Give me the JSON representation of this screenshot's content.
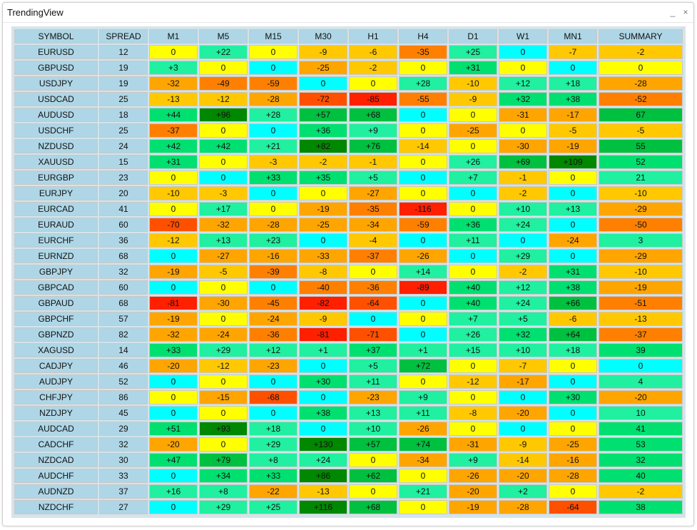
{
  "window": {
    "title": "TrendingView",
    "minimize_label": "_",
    "close_label": "×"
  },
  "table": {
    "headers": [
      "SYMBOL",
      "SPREAD",
      "M1",
      "M5",
      "M15",
      "M30",
      "H1",
      "H4",
      "D1",
      "W1",
      "MN1",
      "SUMMARY"
    ],
    "rows": [
      {
        "symbol": "EURUSD",
        "spread": "12",
        "values": [
          "0",
          "+22",
          "0",
          "-9",
          "-6",
          "-35",
          "+25",
          "0",
          "-7",
          "-2"
        ]
      },
      {
        "symbol": "GBPUSD",
        "spread": "19",
        "values": [
          "+3",
          "0",
          "0",
          "-25",
          "-2",
          "0",
          "+31",
          "0",
          "0",
          "0"
        ]
      },
      {
        "symbol": "USDJPY",
        "spread": "19",
        "values": [
          "-32",
          "-49",
          "-59",
          "0",
          "0",
          "+28",
          "-10",
          "+12",
          "+18",
          "-28"
        ]
      },
      {
        "symbol": "USDCAD",
        "spread": "25",
        "values": [
          "-13",
          "-12",
          "-28",
          "-72",
          "-85",
          "-55",
          "-9",
          "+32",
          "+38",
          "-52"
        ]
      },
      {
        "symbol": "AUDUSD",
        "spread": "18",
        "values": [
          "+44",
          "+96",
          "+28",
          "+57",
          "+68",
          "0",
          "0",
          "-31",
          "-17",
          "67"
        ]
      },
      {
        "symbol": "USDCHF",
        "spread": "25",
        "values": [
          "-37",
          "0",
          "0",
          "+36",
          "+9",
          "0",
          "-25",
          "0",
          "-5",
          "-5"
        ]
      },
      {
        "symbol": "NZDUSD",
        "spread": "24",
        "values": [
          "+42",
          "+42",
          "+21",
          "+82",
          "+76",
          "-14",
          "0",
          "-30",
          "-19",
          "55"
        ]
      },
      {
        "symbol": "XAUUSD",
        "spread": "15",
        "values": [
          "+31",
          "0",
          "-3",
          "-2",
          "-1",
          "0",
          "+26",
          "+69",
          "+109",
          "52"
        ]
      },
      {
        "symbol": "EURGBP",
        "spread": "23",
        "values": [
          "0",
          "0",
          "+33",
          "+35",
          "+5",
          "0",
          "+7",
          "-1",
          "0",
          "21"
        ]
      },
      {
        "symbol": "EURJPY",
        "spread": "20",
        "values": [
          "-10",
          "-3",
          "0",
          "0",
          "-27",
          "0",
          "0",
          "-2",
          "0",
          "-10"
        ]
      },
      {
        "symbol": "EURCAD",
        "spread": "41",
        "values": [
          "0",
          "+17",
          "0",
          "-19",
          "-35",
          "-116",
          "0",
          "+10",
          "+13",
          "-29"
        ]
      },
      {
        "symbol": "EURAUD",
        "spread": "60",
        "values": [
          "-70",
          "-32",
          "-28",
          "-25",
          "-34",
          "-59",
          "+36",
          "+24",
          "0",
          "-50"
        ]
      },
      {
        "symbol": "EURCHF",
        "spread": "36",
        "values": [
          "-12",
          "+13",
          "+23",
          "0",
          "-4",
          "0",
          "+11",
          "0",
          "-24",
          "3"
        ]
      },
      {
        "symbol": "EURNZD",
        "spread": "68",
        "values": [
          "0",
          "-27",
          "-16",
          "-33",
          "-37",
          "-26",
          "0",
          "+29",
          "0",
          "-29"
        ]
      },
      {
        "symbol": "GBPJPY",
        "spread": "32",
        "values": [
          "-19",
          "-5",
          "-39",
          "-8",
          "0",
          "+14",
          "0",
          "-2",
          "+31",
          "-10"
        ]
      },
      {
        "symbol": "GBPCAD",
        "spread": "60",
        "values": [
          "0",
          "0",
          "0",
          "-40",
          "-36",
          "-89",
          "+40",
          "+12",
          "+38",
          "-19"
        ]
      },
      {
        "symbol": "GBPAUD",
        "spread": "68",
        "values": [
          "-81",
          "-30",
          "-45",
          "-82",
          "-64",
          "0",
          "+40",
          "+24",
          "+66",
          "-51"
        ]
      },
      {
        "symbol": "GBPCHF",
        "spread": "57",
        "values": [
          "-19",
          "0",
          "-24",
          "-9",
          "0",
          "0",
          "+7",
          "+5",
          "-6",
          "-13"
        ]
      },
      {
        "symbol": "GBPNZD",
        "spread": "82",
        "values": [
          "-32",
          "-24",
          "-36",
          "-81",
          "-71",
          "0",
          "+26",
          "+32",
          "+64",
          "-37"
        ]
      },
      {
        "symbol": "XAGUSD",
        "spread": "14",
        "values": [
          "+33",
          "+29",
          "+12",
          "+1",
          "+37",
          "+1",
          "+15",
          "+10",
          "+18",
          "39"
        ]
      },
      {
        "symbol": "CADJPY",
        "spread": "46",
        "values": [
          "-20",
          "-12",
          "-23",
          "0",
          "+5",
          "+72",
          "0",
          "-7",
          "0",
          "0"
        ]
      },
      {
        "symbol": "AUDJPY",
        "spread": "52",
        "values": [
          "0",
          "0",
          "0",
          "+30",
          "+11",
          "0",
          "-12",
          "-17",
          "0",
          "4"
        ]
      },
      {
        "symbol": "CHFJPY",
        "spread": "86",
        "values": [
          "0",
          "-15",
          "-68",
          "0",
          "-23",
          "+9",
          "0",
          "0",
          "+30",
          "-20"
        ]
      },
      {
        "symbol": "NZDJPY",
        "spread": "45",
        "values": [
          "0",
          "0",
          "0",
          "+38",
          "+13",
          "+11",
          "-8",
          "-20",
          "0",
          "10"
        ]
      },
      {
        "symbol": "AUDCAD",
        "spread": "29",
        "values": [
          "+51",
          "+93",
          "+18",
          "0",
          "+10",
          "-26",
          "0",
          "0",
          "0",
          "41"
        ]
      },
      {
        "symbol": "CADCHF",
        "spread": "32",
        "values": [
          "-20",
          "0",
          "+29",
          "+130",
          "+57",
          "+74",
          "-31",
          "-9",
          "-25",
          "53"
        ]
      },
      {
        "symbol": "NZDCAD",
        "spread": "30",
        "values": [
          "+47",
          "+79",
          "+8",
          "+24",
          "0",
          "-34",
          "+9",
          "-14",
          "-16",
          "32"
        ]
      },
      {
        "symbol": "AUDCHF",
        "spread": "33",
        "values": [
          "0",
          "+34",
          "+33",
          "+86",
          "+62",
          "0",
          "-26",
          "-20",
          "-28",
          "40"
        ]
      },
      {
        "symbol": "AUDNZD",
        "spread": "37",
        "values": [
          "+16",
          "+8",
          "-22",
          "-13",
          "0",
          "+21",
          "-20",
          "+2",
          "0",
          "-2"
        ]
      },
      {
        "symbol": "NZDCHF",
        "spread": "27",
        "values": [
          "0",
          "+29",
          "+25",
          "+116",
          "+68",
          "0",
          "-19",
          "-28",
          "-64",
          "38"
        ]
      }
    ]
  },
  "colors": {
    "header_bg": "#aed6e6",
    "zero": "#ffff00",
    "zero_alt": "#00ffff",
    "neg_weak": "#ffc800",
    "neg_mid": "#ffa500",
    "neg_strong": "#ff8000",
    "neg_heavy": "#ff5000",
    "neg_extreme": "#ff2000",
    "pos_weak": "#20f0a0",
    "pos_mid": "#00e070",
    "pos_strong": "#00c040",
    "pos_extreme": "#008800"
  }
}
